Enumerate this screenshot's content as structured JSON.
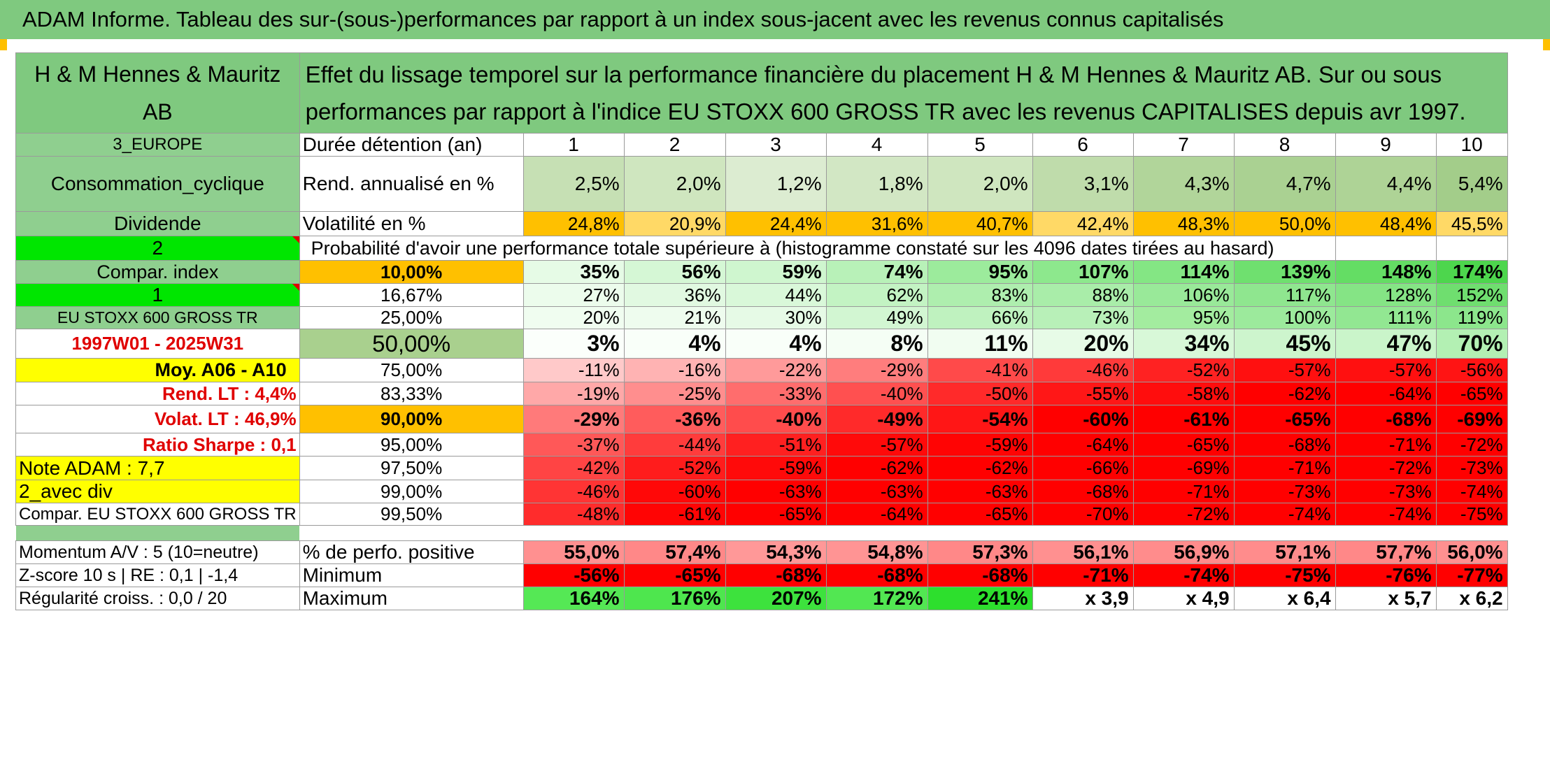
{
  "title": "ADAM Informe. Tableau des sur-(sous-)performances par rapport à un index sous-jacent avec les revenus connus capitalisés",
  "header": {
    "company": "H & M Hennes & Mauritz AB",
    "description": "Effet du lissage temporel sur la performance financière du placement H & M Hennes & Mauritz AB. Sur ou sous performances par rapport à l'indice EU STOXX 600 GROSS TR avec les revenus CAPITALISES depuis avr 1997."
  },
  "side": {
    "region": "3_EUROPE",
    "sector": "Consommation_cyclique",
    "dividend": "Dividende",
    "code2": "2",
    "compar_index": "Compar. index",
    "code1": "1",
    "index_name": "EU STOXX 600 GROSS TR",
    "period": "1997W01 - 2025W31",
    "moy": "Moy. A06 - A10",
    "rend_lt": "Rend. LT :    4,4%",
    "volat_lt": "Volat. LT :    46,9%",
    "sharpe": "Ratio Sharpe :    0,1",
    "note": "Note ADAM : 7,7",
    "avec_div": "2_avec div",
    "compar_full": "Compar. EU STOXX 600 GROSS TR",
    "momentum": "Momentum A/V : 5 (10=neutre)",
    "zscore": "Z-score 10 s | RE : 0,1 | -1,4",
    "regularite": "Régularité croiss. : 0,0 / 20"
  },
  "labels": {
    "duree": "Durée détention (an)",
    "rend": "Rend. annualisé en %",
    "volat": "Volatilité en %",
    "proba": "Probabilité d'avoir une performance totale supérieure à (histogramme constaté sur les 4096 dates tirées au hasard)",
    "pct_pos": "% de perfo. positive",
    "minimum": "Minimum",
    "maximum": "Maximum"
  },
  "years": [
    "1",
    "2",
    "3",
    "4",
    "5",
    "6",
    "7",
    "8",
    "9",
    "10"
  ],
  "rend": [
    "2,5%",
    "2,0%",
    "1,2%",
    "1,8%",
    "2,0%",
    "3,1%",
    "4,3%",
    "4,7%",
    "4,4%",
    "5,4%"
  ],
  "volat": [
    "24,8%",
    "20,9%",
    "24,4%",
    "31,6%",
    "40,7%",
    "42,4%",
    "48,3%",
    "50,0%",
    "48,4%",
    "45,5%"
  ],
  "quantiles": [
    {
      "q": "10,00%",
      "v": [
        "35%",
        "56%",
        "59%",
        "74%",
        "95%",
        "107%",
        "114%",
        "139%",
        "148%",
        "174%"
      ]
    },
    {
      "q": "16,67%",
      "v": [
        "27%",
        "36%",
        "44%",
        "62%",
        "83%",
        "88%",
        "106%",
        "117%",
        "128%",
        "152%"
      ]
    },
    {
      "q": "25,00%",
      "v": [
        "20%",
        "21%",
        "30%",
        "49%",
        "66%",
        "73%",
        "95%",
        "100%",
        "111%",
        "119%"
      ]
    },
    {
      "q": "50,00%",
      "v": [
        "3%",
        "4%",
        "4%",
        "8%",
        "11%",
        "20%",
        "34%",
        "45%",
        "47%",
        "70%"
      ]
    },
    {
      "q": "75,00%",
      "v": [
        "-11%",
        "-16%",
        "-22%",
        "-29%",
        "-41%",
        "-46%",
        "-52%",
        "-57%",
        "-57%",
        "-56%"
      ]
    },
    {
      "q": "83,33%",
      "v": [
        "-19%",
        "-25%",
        "-33%",
        "-40%",
        "-50%",
        "-55%",
        "-58%",
        "-62%",
        "-64%",
        "-65%"
      ]
    },
    {
      "q": "90,00%",
      "v": [
        "-29%",
        "-36%",
        "-40%",
        "-49%",
        "-54%",
        "-60%",
        "-61%",
        "-65%",
        "-68%",
        "-69%"
      ]
    },
    {
      "q": "95,00%",
      "v": [
        "-37%",
        "-44%",
        "-51%",
        "-57%",
        "-59%",
        "-64%",
        "-65%",
        "-68%",
        "-71%",
        "-72%"
      ]
    },
    {
      "q": "97,50%",
      "v": [
        "-42%",
        "-52%",
        "-59%",
        "-62%",
        "-62%",
        "-66%",
        "-69%",
        "-71%",
        "-72%",
        "-73%"
      ]
    },
    {
      "q": "99,00%",
      "v": [
        "-46%",
        "-60%",
        "-63%",
        "-63%",
        "-63%",
        "-68%",
        "-71%",
        "-73%",
        "-73%",
        "-74%"
      ]
    },
    {
      "q": "99,50%",
      "v": [
        "-48%",
        "-61%",
        "-65%",
        "-64%",
        "-65%",
        "-70%",
        "-72%",
        "-74%",
        "-74%",
        "-75%"
      ]
    }
  ],
  "pct_pos": [
    "55,0%",
    "57,4%",
    "54,3%",
    "54,8%",
    "57,3%",
    "56,1%",
    "56,9%",
    "57,1%",
    "57,7%",
    "56,0%"
  ],
  "minimum": [
    "-56%",
    "-65%",
    "-68%",
    "-68%",
    "-68%",
    "-71%",
    "-74%",
    "-75%",
    "-76%",
    "-77%"
  ],
  "maximum": [
    "164%",
    "176%",
    "207%",
    "172%",
    "241%",
    "x 3,9",
    "x 4,9",
    "x 6,4",
    "x 5,7",
    "x 6,2"
  ],
  "colors": {
    "header_green": "#7fc97f",
    "bright_green": "#00e600",
    "orange": "#ffc000",
    "yellow": "#ffff00",
    "red": "#ff0000",
    "rend_bg": "#c6e0b4"
  }
}
